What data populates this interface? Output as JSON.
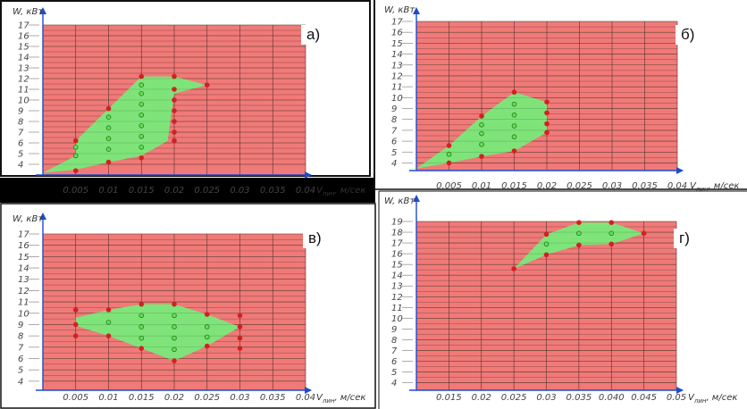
{
  "chart_data": [
    {
      "type": "scatter",
      "panel_label": "а)",
      "ylabel": "W, кВт",
      "xlabel_main": "V",
      "xlabel_sub": "лин",
      "xlabel_unit": ", м/сек",
      "x_ticks": [
        0.005,
        0.01,
        0.015,
        0.02,
        0.025,
        0.03,
        0.035,
        0.04
      ],
      "x_tick_labels": [
        "0.005",
        "0.01",
        "0.015",
        "0.02",
        "0.025",
        "0.03",
        "0.035",
        "0.04"
      ],
      "xlim": [
        0,
        0.04
      ],
      "y_ticks": [
        4,
        5,
        6,
        7,
        8,
        9,
        10,
        11,
        12,
        13,
        14,
        15,
        16,
        17
      ],
      "y_tick_labels": [
        "4",
        "5",
        "6",
        "7",
        "8",
        "9",
        "10",
        "11",
        "12",
        "13",
        "14",
        "15",
        "16",
        "17"
      ],
      "ylim": [
        3,
        17
      ],
      "region_color": "#f07a78",
      "feasible_color": "#7ee47a",
      "point_edge_color": "#d42020",
      "point_inner_color": "#66dd55",
      "feasible_polygon": [
        [
          0,
          3.2
        ],
        [
          0.005,
          4.8
        ],
        [
          0.005,
          6.2
        ],
        [
          0.01,
          9.2
        ],
        [
          0.015,
          12.2
        ],
        [
          0.02,
          12.2
        ],
        [
          0.025,
          11.4
        ],
        [
          0.02,
          10.6
        ],
        [
          0.019,
          6.2
        ],
        [
          0.015,
          4.8
        ],
        [
          0.01,
          4.2
        ],
        [
          0.005,
          3.5
        ]
      ],
      "boundary_points": [
        [
          0.005,
          3.4
        ],
        [
          0.005,
          6.2
        ],
        [
          0.01,
          4.2
        ],
        [
          0.01,
          9.2
        ],
        [
          0.015,
          4.6
        ],
        [
          0.015,
          12.2
        ],
        [
          0.02,
          12.2
        ],
        [
          0.02,
          11
        ],
        [
          0.02,
          10
        ],
        [
          0.02,
          9
        ],
        [
          0.02,
          8
        ],
        [
          0.02,
          7
        ],
        [
          0.02,
          6.2
        ],
        [
          0.025,
          11.4
        ]
      ],
      "inner_points": [
        [
          0.005,
          4.8
        ],
        [
          0.005,
          5.6
        ],
        [
          0.01,
          5.4
        ],
        [
          0.01,
          6.4
        ],
        [
          0.01,
          7.4
        ],
        [
          0.01,
          8.4
        ],
        [
          0.015,
          5.6
        ],
        [
          0.015,
          6.6
        ],
        [
          0.015,
          7.6
        ],
        [
          0.015,
          8.6
        ],
        [
          0.015,
          9.6
        ],
        [
          0.015,
          10.6
        ],
        [
          0.015,
          11.4
        ]
      ]
    },
    {
      "type": "scatter",
      "panel_label": "б)",
      "ylabel": "W, кВт",
      "xlabel_main": "V",
      "xlabel_sub": "лин",
      "xlabel_unit": ", м/сек",
      "x_ticks": [
        0.005,
        0.01,
        0.015,
        0.02,
        0.025,
        0.03,
        0.035,
        0.04
      ],
      "x_tick_labels": [
        "0.005",
        "0.01",
        "0.015",
        "0.02",
        "0.025",
        "0.03",
        "0.035",
        "0.04"
      ],
      "xlim": [
        0,
        0.04
      ],
      "y_ticks": [
        4,
        5,
        6,
        7,
        8,
        9,
        10,
        11,
        12,
        13,
        14,
        15,
        16,
        17
      ],
      "y_tick_labels": [
        "4",
        "5",
        "6",
        "7",
        "8",
        "9",
        "10",
        "11",
        "12",
        "13",
        "14",
        "15",
        "16",
        "17"
      ],
      "ylim": [
        3.3,
        17
      ],
      "region_color": "#f07a78",
      "feasible_color": "#7ee47a",
      "point_edge_color": "#d42020",
      "point_inner_color": "#66dd55",
      "feasible_polygon": [
        [
          0,
          3.5
        ],
        [
          0.005,
          5.6
        ],
        [
          0.01,
          8.3
        ],
        [
          0.015,
          10.5
        ],
        [
          0.02,
          9.6
        ],
        [
          0.02,
          6.8
        ],
        [
          0.015,
          5.1
        ],
        [
          0.01,
          4.6
        ],
        [
          0.005,
          4
        ]
      ],
      "boundary_points": [
        [
          0.005,
          5.6
        ],
        [
          0.005,
          4
        ],
        [
          0.01,
          8.3
        ],
        [
          0.01,
          4.6
        ],
        [
          0.015,
          10.5
        ],
        [
          0.015,
          5.1
        ],
        [
          0.02,
          9.6
        ],
        [
          0.02,
          8.6
        ],
        [
          0.02,
          7.6
        ],
        [
          0.02,
          6.8
        ]
      ],
      "inner_points": [
        [
          0.005,
          4.8
        ],
        [
          0.01,
          5.7
        ],
        [
          0.01,
          6.7
        ],
        [
          0.01,
          7.5
        ],
        [
          0.015,
          6.4
        ],
        [
          0.015,
          7.4
        ],
        [
          0.015,
          8.4
        ],
        [
          0.015,
          9.4
        ]
      ]
    },
    {
      "type": "scatter",
      "panel_label": "в)",
      "ylabel": "W, кВт",
      "xlabel_main": "V",
      "xlabel_sub": "лин",
      "xlabel_unit": ", м/сек",
      "x_ticks": [
        0.005,
        0.01,
        0.015,
        0.02,
        0.025,
        0.03,
        0.035,
        0.04
      ],
      "x_tick_labels": [
        "0.005",
        "0.01",
        "0.015",
        "0.02",
        "0.025",
        "0.03",
        "0.035",
        "0.04"
      ],
      "xlim": [
        0,
        0.04
      ],
      "y_ticks": [
        4,
        5,
        6,
        7,
        8,
        9,
        10,
        11,
        12,
        13,
        14,
        15,
        16,
        17
      ],
      "y_tick_labels": [
        "4",
        "5",
        "6",
        "7",
        "8",
        "9",
        "10",
        "11",
        "12",
        "13",
        "14",
        "15",
        "16",
        "17"
      ],
      "ylim": [
        3.2,
        17
      ],
      "region_color": "#f07a78",
      "feasible_color": "#7ee47a",
      "point_edge_color": "#d42020",
      "point_inner_color": "#66dd55",
      "feasible_polygon": [
        [
          0.005,
          9.6
        ],
        [
          0.01,
          10.3
        ],
        [
          0.015,
          10.8
        ],
        [
          0.02,
          10.8
        ],
        [
          0.025,
          9.9
        ],
        [
          0.03,
          8.8
        ],
        [
          0.025,
          7.1
        ],
        [
          0.02,
          5.8
        ],
        [
          0.015,
          6.9
        ],
        [
          0.01,
          8
        ],
        [
          0.005,
          8.9
        ]
      ],
      "boundary_points": [
        [
          0.005,
          10.3
        ],
        [
          0.005,
          9
        ],
        [
          0.005,
          8
        ],
        [
          0.01,
          10.3
        ],
        [
          0.01,
          8
        ],
        [
          0.015,
          10.8
        ],
        [
          0.015,
          6.9
        ],
        [
          0.02,
          10.8
        ],
        [
          0.02,
          5.8
        ],
        [
          0.025,
          9.9
        ],
        [
          0.025,
          7.1
        ],
        [
          0.03,
          9.8
        ],
        [
          0.03,
          8.8
        ],
        [
          0.03,
          7.8
        ],
        [
          0.03,
          6.9
        ]
      ],
      "inner_points": [
        [
          0.01,
          9.2
        ],
        [
          0.015,
          9.8
        ],
        [
          0.015,
          8.8
        ],
        [
          0.015,
          7.8
        ],
        [
          0.02,
          9.8
        ],
        [
          0.02,
          8.8
        ],
        [
          0.02,
          7.8
        ],
        [
          0.02,
          6.8
        ],
        [
          0.025,
          8.8
        ],
        [
          0.025,
          7.9
        ]
      ]
    },
    {
      "type": "scatter",
      "panel_label": "г)",
      "ylabel": "W, кВт",
      "xlabel_main": "V",
      "xlabel_sub": "лин",
      "xlabel_unit": ", м/сек",
      "x_ticks": [
        0.015,
        0.02,
        0.025,
        0.03,
        0.035,
        0.04,
        0.045,
        0.05
      ],
      "x_tick_labels": [
        "0.015",
        "0.02",
        "0.025",
        "0.03",
        "0.035",
        "0.040",
        "0.045",
        "0.05"
      ],
      "xlim": [
        0.01,
        0.05
      ],
      "y_ticks": [
        4,
        5,
        6,
        7,
        8,
        9,
        10,
        11,
        12,
        13,
        14,
        15,
        16,
        17,
        18,
        19
      ],
      "y_tick_labels": [
        "4",
        "5",
        "6",
        "7",
        "8",
        "9",
        "10",
        "11",
        "12",
        "13",
        "14",
        "15",
        "16",
        "17",
        "18",
        "19"
      ],
      "ylim": [
        3.3,
        19
      ],
      "region_color": "#f07a78",
      "feasible_color": "#7ee47a",
      "point_edge_color": "#d42020",
      "point_inner_color": "#66dd55",
      "feasible_polygon": [
        [
          0.025,
          14.6
        ],
        [
          0.03,
          17.8
        ],
        [
          0.035,
          18.9
        ],
        [
          0.04,
          18.9
        ],
        [
          0.045,
          17.9
        ],
        [
          0.04,
          16.9
        ],
        [
          0.035,
          16.8
        ],
        [
          0.03,
          15.9
        ]
      ],
      "boundary_points": [
        [
          0.025,
          14.6
        ],
        [
          0.03,
          17.8
        ],
        [
          0.03,
          15.9
        ],
        [
          0.035,
          18.9
        ],
        [
          0.035,
          16.8
        ],
        [
          0.04,
          18.9
        ],
        [
          0.04,
          16.9
        ],
        [
          0.045,
          17.9
        ]
      ],
      "inner_points": [
        [
          0.03,
          16.9
        ],
        [
          0.035,
          17.9
        ],
        [
          0.04,
          17.9
        ]
      ]
    }
  ]
}
